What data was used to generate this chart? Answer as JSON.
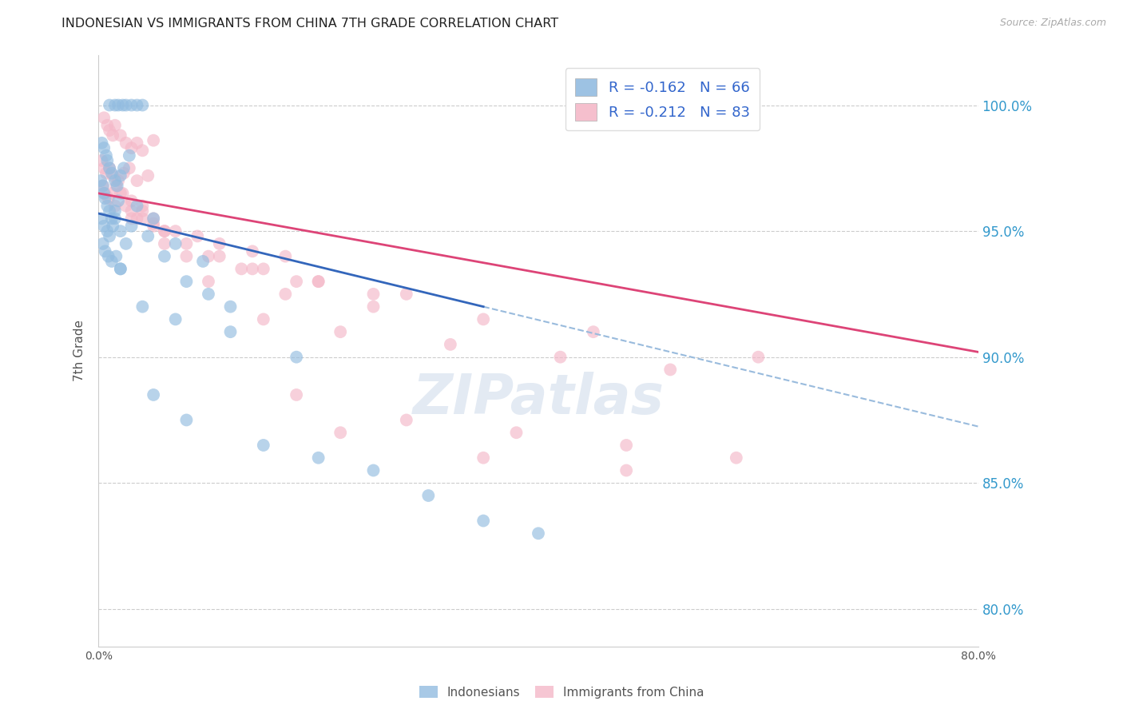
{
  "title": "INDONESIAN VS IMMIGRANTS FROM CHINA 7TH GRADE CORRELATION CHART",
  "source": "Source: ZipAtlas.com",
  "ylabel": "7th Grade",
  "ytick_values": [
    80.0,
    85.0,
    90.0,
    95.0,
    100.0
  ],
  "xrange": [
    0.0,
    80.0
  ],
  "yrange": [
    78.5,
    102.0
  ],
  "blue_color": "#92bce0",
  "pink_color": "#f4b8c8",
  "blue_line_color": "#3366bb",
  "pink_line_color": "#dd4477",
  "dashed_line_color": "#99bbdd",
  "blue_line_x0": 0.0,
  "blue_line_y0": 95.7,
  "blue_line_x1": 35.0,
  "blue_line_y1": 92.0,
  "blue_dash_x0": 35.0,
  "blue_dash_x1": 80.0,
  "pink_line_x0": 0.0,
  "pink_line_y0": 96.5,
  "pink_line_x1": 80.0,
  "pink_line_y1": 90.2,
  "blue_scatter_x": [
    1.0,
    1.5,
    1.8,
    2.2,
    2.5,
    3.0,
    3.5,
    4.0,
    0.3,
    0.5,
    0.7,
    0.8,
    1.0,
    1.2,
    1.5,
    1.7,
    2.0,
    2.3,
    2.8,
    0.2,
    0.4,
    0.5,
    0.6,
    0.8,
    1.0,
    1.2,
    1.5,
    1.8,
    0.3,
    0.5,
    0.8,
    1.0,
    1.3,
    1.5,
    2.0,
    2.5,
    0.4,
    0.6,
    0.9,
    1.2,
    1.6,
    2.0,
    3.0,
    4.5,
    6.0,
    8.0,
    10.0,
    3.5,
    5.0,
    7.0,
    9.5,
    12.0,
    2.0,
    4.0,
    7.0,
    12.0,
    18.0,
    5.0,
    8.0,
    15.0,
    20.0,
    25.0,
    30.0,
    35.0,
    40.0
  ],
  "blue_scatter_y": [
    100.0,
    100.0,
    100.0,
    100.0,
    100.0,
    100.0,
    100.0,
    100.0,
    98.5,
    98.3,
    98.0,
    97.8,
    97.5,
    97.3,
    97.0,
    96.8,
    97.2,
    97.5,
    98.0,
    97.0,
    96.8,
    96.5,
    96.3,
    96.0,
    95.8,
    95.5,
    95.8,
    96.2,
    95.5,
    95.2,
    95.0,
    94.8,
    95.2,
    95.5,
    95.0,
    94.5,
    94.5,
    94.2,
    94.0,
    93.8,
    94.0,
    93.5,
    95.2,
    94.8,
    94.0,
    93.0,
    92.5,
    96.0,
    95.5,
    94.5,
    93.8,
    92.0,
    93.5,
    92.0,
    91.5,
    91.0,
    90.0,
    88.5,
    87.5,
    86.5,
    86.0,
    85.5,
    84.5,
    83.5,
    83.0
  ],
  "pink_scatter_x": [
    0.5,
    0.8,
    1.0,
    1.3,
    1.5,
    2.0,
    2.5,
    3.0,
    3.5,
    4.0,
    5.0,
    0.3,
    0.5,
    0.7,
    1.0,
    1.3,
    1.8,
    2.3,
    2.8,
    3.5,
    4.5,
    0.4,
    0.6,
    0.9,
    1.2,
    1.6,
    2.2,
    3.0,
    4.0,
    5.0,
    1.5,
    2.0,
    2.5,
    3.0,
    3.5,
    4.0,
    5.0,
    6.0,
    3.0,
    5.0,
    7.0,
    9.0,
    11.0,
    14.0,
    17.0,
    4.0,
    6.0,
    8.0,
    11.0,
    14.0,
    18.0,
    6.0,
    10.0,
    15.0,
    20.0,
    25.0,
    8.0,
    13.0,
    20.0,
    28.0,
    10.0,
    17.0,
    25.0,
    35.0,
    45.0,
    15.0,
    22.0,
    32.0,
    42.0,
    52.0,
    60.0,
    18.0,
    28.0,
    38.0,
    48.0,
    58.0,
    22.0,
    35.0,
    48.0
  ],
  "pink_scatter_y": [
    99.5,
    99.2,
    99.0,
    98.8,
    99.2,
    98.8,
    98.5,
    98.3,
    98.5,
    98.2,
    98.6,
    97.8,
    97.5,
    97.3,
    97.5,
    97.2,
    97.0,
    97.3,
    97.5,
    97.0,
    97.2,
    96.8,
    96.5,
    96.3,
    96.5,
    96.8,
    96.5,
    96.2,
    95.8,
    95.5,
    96.0,
    96.5,
    96.0,
    95.8,
    95.5,
    96.0,
    95.3,
    95.0,
    95.5,
    95.2,
    95.0,
    94.8,
    94.5,
    94.2,
    94.0,
    95.5,
    95.0,
    94.5,
    94.0,
    93.5,
    93.0,
    94.5,
    94.0,
    93.5,
    93.0,
    92.5,
    94.0,
    93.5,
    93.0,
    92.5,
    93.0,
    92.5,
    92.0,
    91.5,
    91.0,
    91.5,
    91.0,
    90.5,
    90.0,
    89.5,
    90.0,
    88.5,
    87.5,
    87.0,
    86.5,
    86.0,
    87.0,
    86.0,
    85.5
  ]
}
